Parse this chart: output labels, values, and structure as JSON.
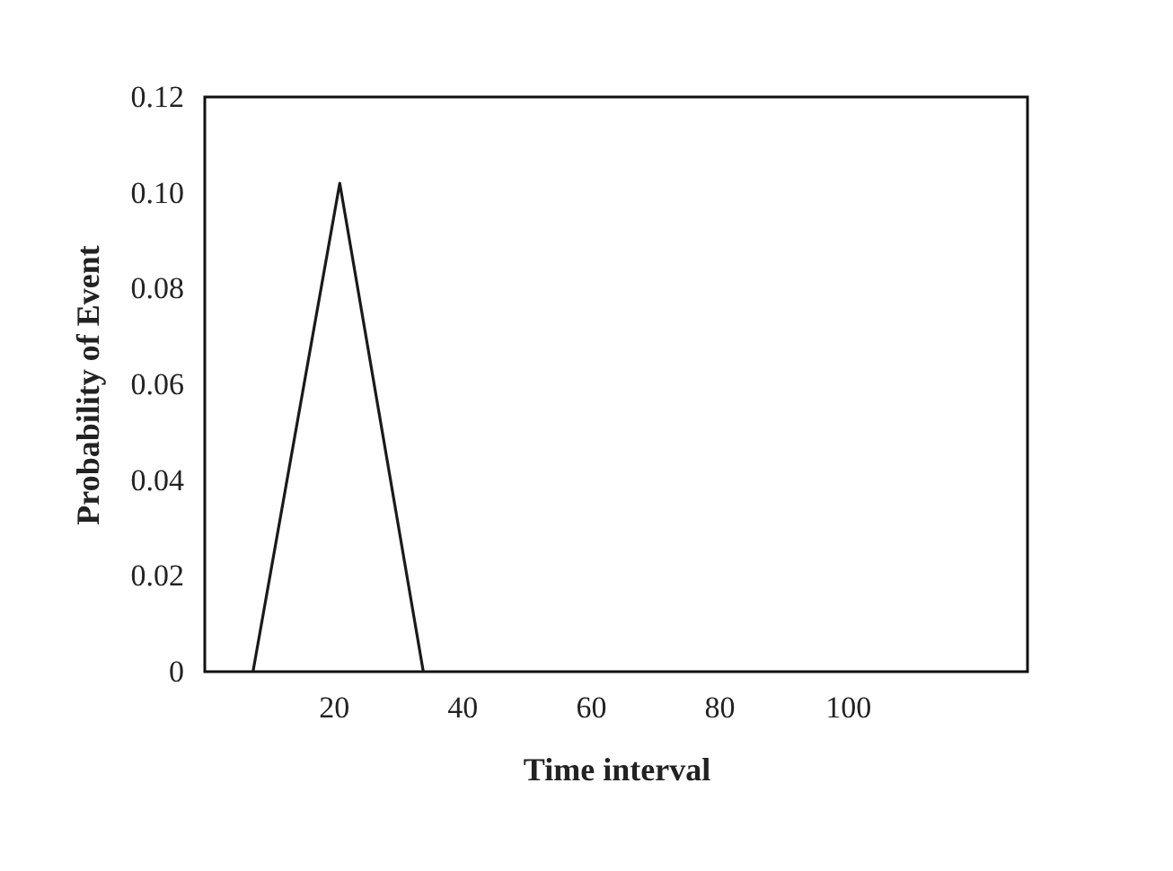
{
  "chart_data": {
    "type": "line",
    "xlabel": "Time interval",
    "ylabel": "Probability of Event",
    "x": [
      7.5,
      21,
      34
    ],
    "series": [
      {
        "color": "#1a1a1a",
        "values": [
          0,
          0.102,
          0
        ]
      }
    ],
    "xlim": [
      0,
      128
    ],
    "xticks": [
      20,
      40,
      60,
      80,
      100
    ],
    "ylim": [
      0,
      0.12
    ],
    "yticks": [
      {
        "value": 0,
        "label": "0"
      },
      {
        "value": 0.02,
        "label": "0.02"
      },
      {
        "value": 0.04,
        "label": "0.04"
      },
      {
        "value": 0.06,
        "label": "0.06"
      },
      {
        "value": 0.08,
        "label": "0.08"
      },
      {
        "value": 0.1,
        "label": "0.10"
      },
      {
        "value": 0.12,
        "label": "0.12"
      }
    ],
    "grid": false,
    "marker": "none",
    "line_style": "solid"
  }
}
